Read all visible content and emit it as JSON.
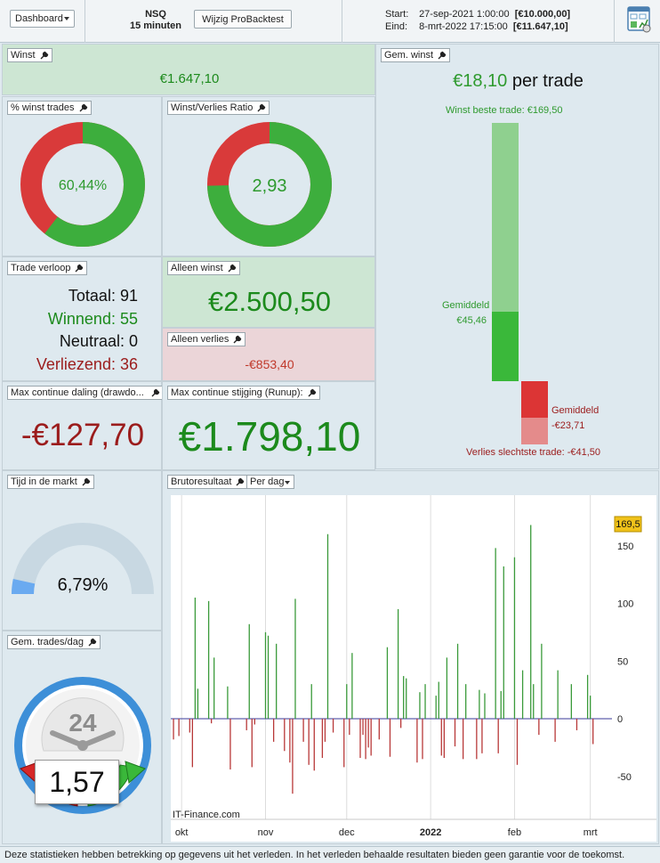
{
  "topbar": {
    "dashboard_label": "Dashboard",
    "instrument": "NSQ",
    "timeframe": "15 minuten",
    "modify_button": "Wijzig ProBacktest",
    "start_label": "Start:",
    "start_date": "27-sep-2021 1:00:00",
    "start_capital": "[€10.000,00]",
    "end_label": "Eind:",
    "end_date": "8-mrt-2022 17:15:00",
    "end_capital": "[€11.647,10]"
  },
  "winst": {
    "title": "Winst",
    "value": "€1.647,10"
  },
  "win_pct": {
    "title": "% winst trades",
    "value": "60,44%",
    "fraction": 0.6044
  },
  "wl_ratio": {
    "title": "Winst/Verlies Ratio",
    "value": "2,93",
    "fraction": 0.7455
  },
  "trade_verloop": {
    "title": "Trade verloop",
    "rows": [
      {
        "label": "Totaal:",
        "value": "91"
      },
      {
        "label": "Winnend:",
        "value": "55"
      },
      {
        "label": "Neutraal:",
        "value": "0"
      },
      {
        "label": "Verliezend:",
        "value": "36"
      }
    ]
  },
  "alleen_winst": {
    "title": "Alleen winst",
    "value": "€2.500,50"
  },
  "alleen_verlies": {
    "title": "Alleen verlies",
    "value": "-€853,40"
  },
  "avg_gain": {
    "title": "Gem. winst",
    "value": "€18,10",
    "suffix": "per trade",
    "best_label": "Winst beste trade: €169,50",
    "avg_win_label": "Gemiddeld",
    "avg_win_value": "€45,46",
    "avg_loss_label": "Gemiddeld",
    "avg_loss_value": "-€23,71",
    "worst_label": "Verlies slechtste trade: -€41,50",
    "best": 169.5,
    "avg_win": 45.46,
    "avg_loss": -23.71,
    "worst": -41.5
  },
  "drawdown": {
    "title": "Max continue daling (drawdo...",
    "value": "-€127,70"
  },
  "runup": {
    "title": "Max continue stijging (Runup):",
    "value": "€1.798,10"
  },
  "tijd_markt": {
    "title": "Tijd in de markt",
    "value": "6,79%",
    "fraction": 0.0679
  },
  "trades_dag": {
    "title": "Gem. trades/dag",
    "value": "1,57",
    "clock_label": "24"
  },
  "bruto": {
    "title": "Brutoresultaat",
    "period_select": "Per dag",
    "watermark": "IT-Finance.com",
    "last_value_badge": "169,5"
  },
  "chart_data": {
    "type": "bar",
    "title": "Brutoresultaat",
    "ylim": [
      -93,
      175
    ],
    "yticks": [
      150,
      100,
      50,
      0,
      -50
    ],
    "xlim": [
      "2021-09-27",
      "2022-03-09"
    ],
    "xticks": [
      {
        "date": "2021-10-01",
        "label": "okt"
      },
      {
        "date": "2021-11-01",
        "label": "nov"
      },
      {
        "date": "2021-12-01",
        "label": "dec"
      },
      {
        "date": "2022-01-01",
        "label": "2022"
      },
      {
        "date": "2022-02-01",
        "label": "feb"
      },
      {
        "date": "2022-03-01",
        "label": "mrt"
      }
    ],
    "gridlines": true,
    "x": [
      "2021-09-27",
      "2021-09-28",
      "2021-09-30",
      "2021-10-04",
      "2021-10-05",
      "2021-10-06",
      "2021-10-07",
      "2021-10-08",
      "2021-10-11",
      "2021-10-12",
      "2021-10-13",
      "2021-10-14",
      "2021-10-18",
      "2021-10-19",
      "2021-10-20",
      "2021-10-22",
      "2021-10-25",
      "2021-10-26",
      "2021-10-27",
      "2021-10-28",
      "2021-11-01",
      "2021-11-02",
      "2021-11-03",
      "2021-11-04",
      "2021-11-05",
      "2021-11-08",
      "2021-11-09",
      "2021-11-10",
      "2021-11-11",
      "2021-11-12",
      "2021-11-15",
      "2021-11-16",
      "2021-11-17",
      "2021-11-18",
      "2021-11-19",
      "2021-11-22",
      "2021-11-23",
      "2021-11-24",
      "2021-11-26",
      "2021-11-29",
      "2021-11-30",
      "2021-12-01",
      "2021-12-02",
      "2021-12-03",
      "2021-12-06",
      "2021-12-07",
      "2021-12-08",
      "2021-12-09",
      "2021-12-10",
      "2021-12-13",
      "2021-12-14",
      "2021-12-15",
      "2021-12-16",
      "2021-12-17",
      "2021-12-20",
      "2021-12-21",
      "2021-12-22",
      "2021-12-23",
      "2021-12-27",
      "2021-12-28",
      "2021-12-29",
      "2021-12-30",
      "2022-01-03",
      "2022-01-04",
      "2022-01-05",
      "2022-01-06",
      "2022-01-07",
      "2022-01-10",
      "2022-01-11",
      "2022-01-12",
      "2022-01-13",
      "2022-01-14",
      "2022-01-18",
      "2022-01-19",
      "2022-01-20",
      "2022-01-21",
      "2022-01-24",
      "2022-01-25",
      "2022-01-26",
      "2022-01-27",
      "2022-01-28",
      "2022-01-31",
      "2022-02-01",
      "2022-02-02",
      "2022-02-03",
      "2022-02-04",
      "2022-02-07",
      "2022-02-08",
      "2022-02-09",
      "2022-02-10",
      "2022-02-11",
      "2022-02-14",
      "2022-02-15",
      "2022-02-16",
      "2022-02-17",
      "2022-02-18",
      "2022-02-22",
      "2022-02-23",
      "2022-02-24",
      "2022-02-25",
      "2022-02-28",
      "2022-03-01",
      "2022-03-02",
      "2022-03-03",
      "2022-03-04",
      "2022-03-07",
      "2022-03-08"
    ],
    "values": [
      0,
      -18,
      -15,
      -12,
      -42,
      105,
      26,
      0,
      102,
      -4,
      53,
      0,
      28,
      -44,
      0,
      0,
      -10,
      82,
      -42,
      -5,
      75,
      72,
      0,
      -20,
      65,
      -28,
      0,
      -38,
      -65,
      104,
      -20,
      0,
      -40,
      30,
      -45,
      -34,
      -20,
      160,
      -12,
      0,
      -42,
      30,
      -14,
      57,
      -34,
      -14,
      -35,
      -25,
      -32,
      -18,
      0,
      0,
      62,
      -33,
      95,
      -8,
      37,
      35,
      -38,
      23,
      -35,
      30,
      20,
      32,
      -32,
      -34,
      53,
      -24,
      65,
      0,
      -35,
      30,
      -35,
      25,
      -30,
      22,
      0,
      148,
      -30,
      24,
      132,
      0,
      140,
      -40,
      0,
      42,
      168,
      30,
      0,
      -14,
      65,
      0,
      0,
      -20,
      42,
      0,
      30,
      0,
      -10,
      0,
      38,
      20,
      -22,
      0,
      0,
      0,
      0
    ],
    "series_colors": {
      "positive": "#3a9a3a",
      "negative": "#b83838"
    }
  },
  "footer": {
    "text": "Deze statistieken hebben betrekking op gegevens uit het verleden. In het verleden behaalde resultaten bieden geen garantie voor de toekomst."
  }
}
